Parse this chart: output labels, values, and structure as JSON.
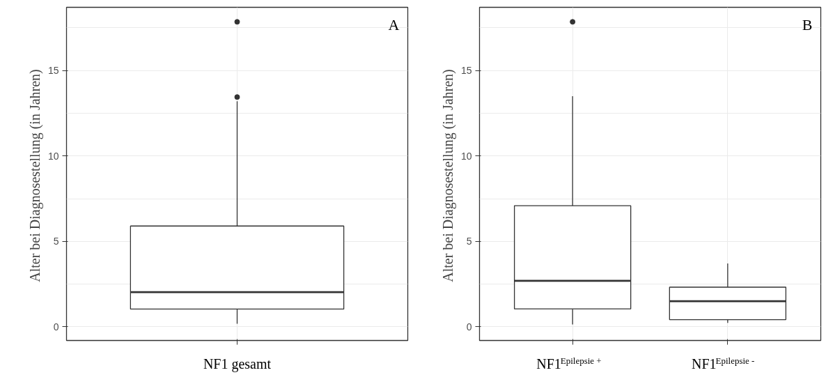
{
  "chart_data": [
    {
      "type": "box",
      "ylabel": "Alter bei Diagnosestellung  (in Jahren)",
      "categories": [
        "NF1 gesamt"
      ],
      "ylim": [
        -0.8,
        18.7
      ],
      "yticks": [
        0,
        5,
        10,
        15
      ],
      "grid": true,
      "annotations": [
        "A"
      ],
      "boxes": [
        {
          "low": 0.18,
          "q1": 1.04,
          "median": 2.03,
          "q3": 5.9,
          "high": 13.2,
          "outliers": [
            13.45,
            17.85
          ]
        }
      ]
    },
    {
      "type": "box",
      "ylabel": "Alter bei Diagnosestellung  (in Jahren)",
      "categories": [
        "NF1$^{Epilepsie +}$",
        "NF1$^{Epilepsie -}$"
      ],
      "ylim": [
        -0.8,
        18.7
      ],
      "yticks": [
        0,
        5,
        10,
        15
      ],
      "grid": true,
      "annotations": [
        "B"
      ],
      "boxes": [
        {
          "low": 0.14,
          "q1": 1.05,
          "median": 2.69,
          "q3": 7.09,
          "high": 13.5,
          "outliers": [
            17.85
          ]
        },
        {
          "low": 0.23,
          "q1": 0.42,
          "median": 1.5,
          "q3": 2.32,
          "high": 3.71
        }
      ]
    }
  ]
}
